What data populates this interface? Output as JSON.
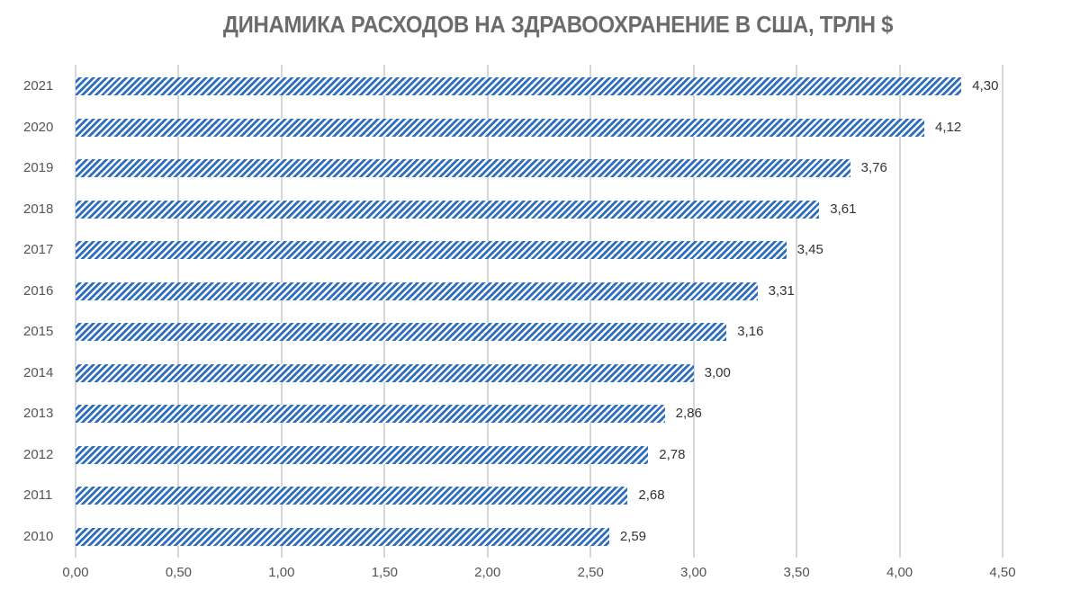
{
  "title": "ДИНАМИКА РАСХОДОВ НА ЗДРАВООХРАНЕНИЕ В США, ТРЛН $",
  "colors": {
    "bar": "#2f6fbf",
    "grid": "#d6d6d6",
    "title": "#6b6b6b",
    "text": "#333333"
  },
  "x_ticks": [
    "0,00",
    "0,50",
    "1,00",
    "1,50",
    "2,00",
    "2,50",
    "3,00",
    "3,50",
    "4,00",
    "4,50"
  ],
  "bars": [
    {
      "year": "2021",
      "value": 4.3,
      "label": "4,30"
    },
    {
      "year": "2020",
      "value": 4.12,
      "label": "4,12"
    },
    {
      "year": "2019",
      "value": 3.76,
      "label": "3,76"
    },
    {
      "year": "2018",
      "value": 3.61,
      "label": "3,61"
    },
    {
      "year": "2017",
      "value": 3.45,
      "label": "3,45"
    },
    {
      "year": "2016",
      "value": 3.31,
      "label": "3,31"
    },
    {
      "year": "2015",
      "value": 3.16,
      "label": "3,16"
    },
    {
      "year": "2014",
      "value": 3.0,
      "label": "3,00"
    },
    {
      "year": "2013",
      "value": 2.86,
      "label": "2,86"
    },
    {
      "year": "2012",
      "value": 2.78,
      "label": "2,78"
    },
    {
      "year": "2011",
      "value": 2.68,
      "label": "2,68"
    },
    {
      "year": "2010",
      "value": 2.59,
      "label": "2,59"
    }
  ],
  "chart_data": {
    "type": "bar",
    "orientation": "horizontal",
    "title": "ДИНАМИКА РАСХОДОВ НА ЗДРАВООХРАНЕНИЕ В США, ТРЛН $",
    "categories": [
      "2010",
      "2011",
      "2012",
      "2013",
      "2014",
      "2015",
      "2016",
      "2017",
      "2018",
      "2019",
      "2020",
      "2021"
    ],
    "values": [
      2.59,
      2.68,
      2.78,
      2.86,
      3.0,
      3.16,
      3.31,
      3.45,
      3.61,
      3.76,
      4.12,
      4.3
    ],
    "data_labels": [
      "2,59",
      "2,68",
      "2,78",
      "2,86",
      "3,00",
      "3,16",
      "3,31",
      "3,45",
      "3,61",
      "3,76",
      "4,12",
      "4,30"
    ],
    "xlabel": "",
    "ylabel": "",
    "xlim": [
      0,
      4.5
    ],
    "x_ticks": [
      0,
      0.5,
      1.0,
      1.5,
      2.0,
      2.5,
      3.0,
      3.5,
      4.0,
      4.5
    ],
    "grid": "vertical",
    "legend": "none",
    "fill": "diagonal hatch, blue"
  }
}
